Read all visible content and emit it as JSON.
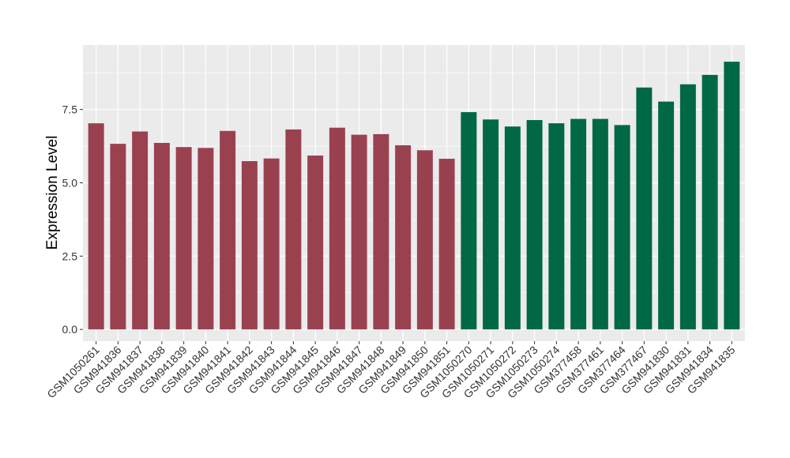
{
  "chart_data": {
    "type": "bar",
    "ylabel": "Expression Level",
    "xlabel": "",
    "ylim": [
      -0.4,
      9.7
    ],
    "yticks": [
      0.0,
      2.5,
      5.0,
      7.5
    ],
    "ytick_labels": [
      "0.0",
      "2.5",
      "5.0",
      "7.5"
    ],
    "grid": true,
    "legend": "none",
    "panel_background": "#EBEBEB",
    "grid_color": "#FFFFFF",
    "categories": [
      "GSM1050261",
      "GSM941836",
      "GSM941837",
      "GSM941838",
      "GSM941839",
      "GSM941840",
      "GSM941841",
      "GSM941842",
      "GSM941843",
      "GSM941844",
      "GSM941845",
      "GSM941846",
      "GSM941847",
      "GSM941848",
      "GSM941849",
      "GSM941850",
      "GSM941851",
      "GSM1050270",
      "GSM1050271",
      "GSM1050272",
      "GSM1050273",
      "GSM1050274",
      "GSM377458",
      "GSM377461",
      "GSM377464",
      "GSM377467",
      "GSM941830",
      "GSM941831",
      "GSM941834",
      "GSM941835"
    ],
    "values": [
      7.03,
      6.33,
      6.75,
      6.36,
      6.22,
      6.19,
      6.77,
      5.74,
      5.83,
      6.82,
      5.93,
      6.88,
      6.64,
      6.66,
      6.28,
      6.11,
      5.82,
      7.41,
      7.16,
      6.92,
      7.14,
      7.03,
      7.18,
      7.18,
      6.97,
      8.25,
      7.77,
      8.36,
      8.68,
      9.13
    ],
    "groups": [
      {
        "color": "#9A4150",
        "start": 0,
        "end": 16
      },
      {
        "color": "#006845",
        "start": 17,
        "end": 29
      }
    ]
  }
}
